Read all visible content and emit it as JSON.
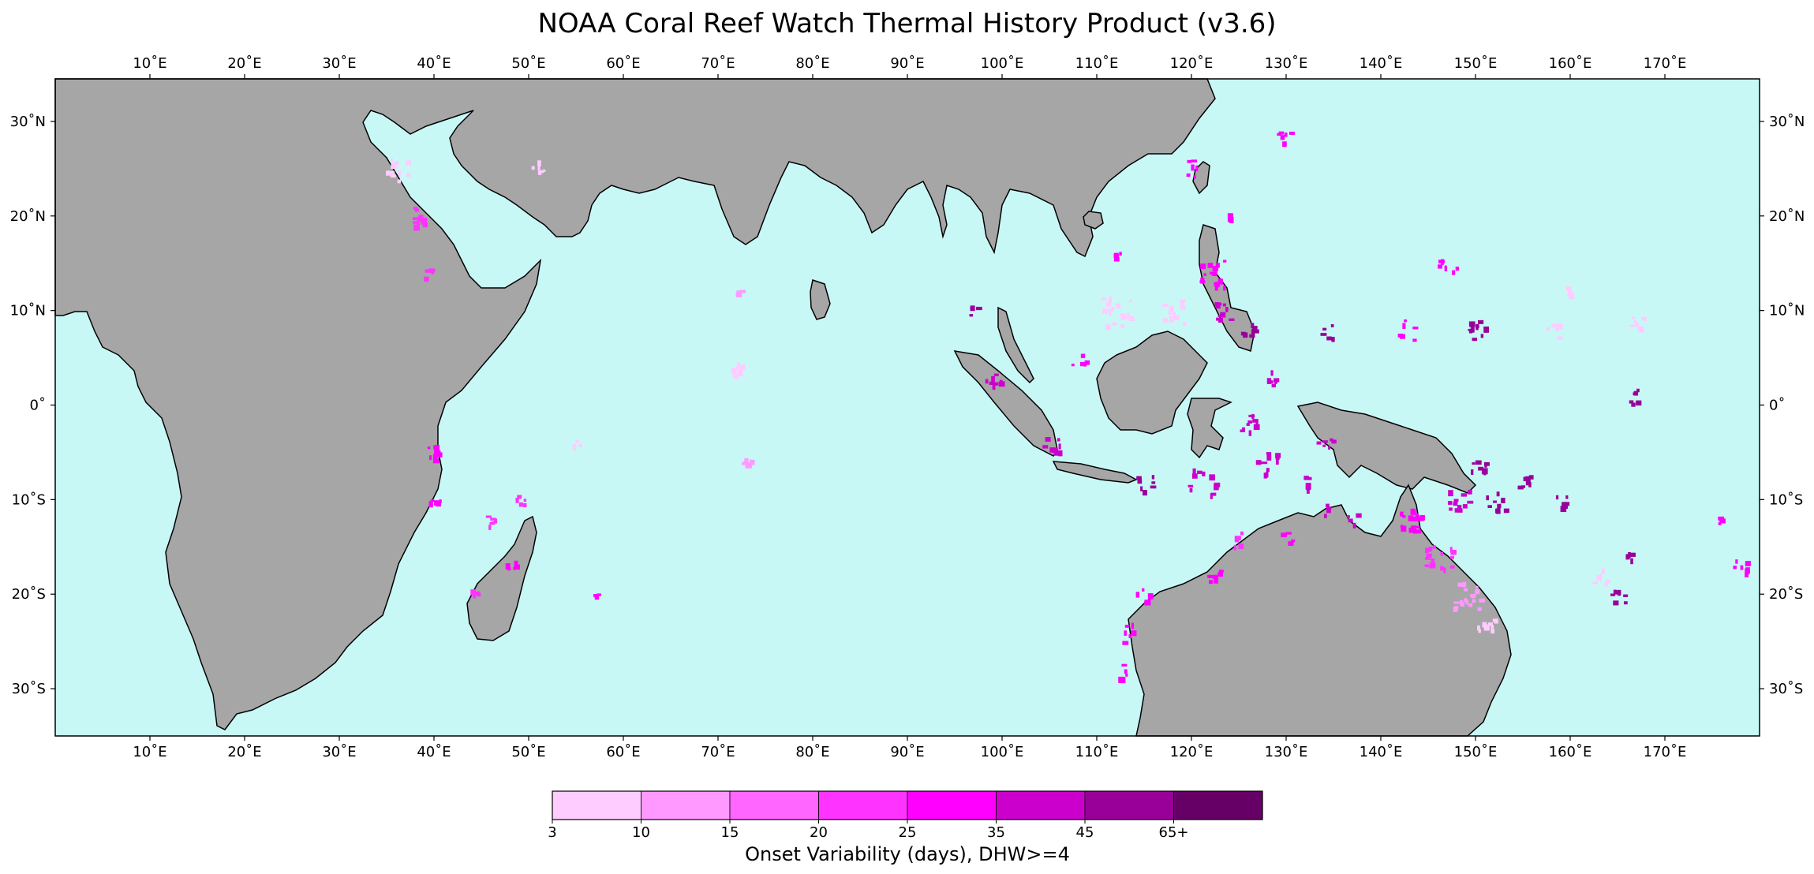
{
  "title": "NOAA Coral Reef Watch Thermal History Product (v3.6)",
  "map": {
    "ocean_color": "#c8f8f6",
    "land_color": "#a6a6a6",
    "coast_color": "#000000",
    "lon_range": [
      0,
      180
    ],
    "lat_range": [
      -35,
      34.5
    ],
    "lon_ticks": [
      "10˚E",
      "20˚E",
      "30˚E",
      "40˚E",
      "50˚E",
      "60˚E",
      "70˚E",
      "80˚E",
      "90˚E",
      "100˚E",
      "110˚E",
      "120˚E",
      "130˚E",
      "140˚E",
      "150˚E",
      "160˚E",
      "170˚E"
    ],
    "lat_ticks": [
      "30˚N",
      "20˚N",
      "10˚N",
      "0˚",
      "10˚S",
      "20˚S",
      "30˚S"
    ]
  },
  "colorbar": {
    "label": "Onset Variability (days), DHW>=4",
    "tick_labels": [
      "3",
      "10",
      "15",
      "20",
      "25",
      "35",
      "45",
      "65+"
    ],
    "colors": [
      "#ffccff",
      "#ff99ff",
      "#ff66ff",
      "#ff33ff",
      "#ff00ff",
      "#cc00cc",
      "#990099",
      "#660066"
    ]
  }
}
